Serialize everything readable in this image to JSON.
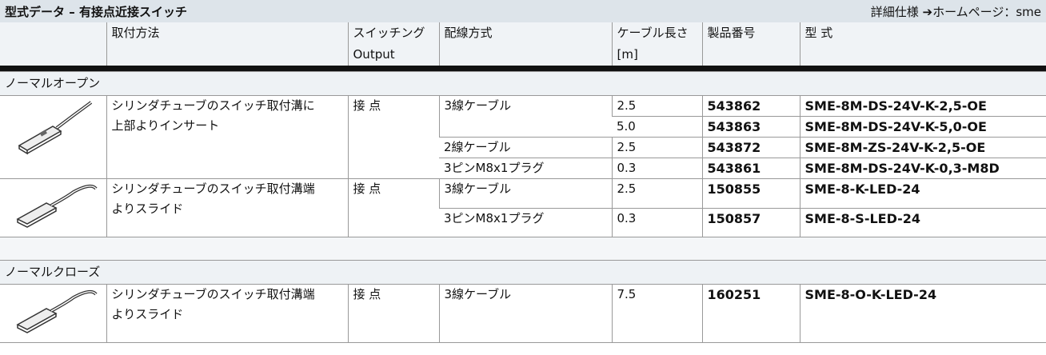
{
  "header": {
    "title": "型式データ – 有接点近接スイッチ",
    "link": "詳細仕様 ➔ホームページ：sme"
  },
  "columns": [
    [
      "取付方法"
    ],
    [
      "スイッチング",
      "Output"
    ],
    [
      "配線方式"
    ],
    [
      "ケーブル長さ",
      "[m]"
    ],
    [
      "製品番号"
    ],
    [
      "型 式"
    ]
  ],
  "sections": [
    {
      "title": "ノーマルオープン",
      "groups": [
        {
          "icon": "insert",
          "mounting": [
            "シリンダチューブのスイッチ取付溝に",
            "上部よりインサート"
          ],
          "switching": "接 点",
          "wirings": [
            {
              "wiring": "3線ケーブル",
              "rows": [
                {
                  "length": "2.5",
                  "part": "543862",
                  "model": "SME-8M-DS-24V-K-2,5-OE"
                },
                {
                  "length": "5.0",
                  "part": "543863",
                  "model": "SME-8M-DS-24V-K-5,0-OE"
                }
              ]
            },
            {
              "wiring": "2線ケーブル",
              "rows": [
                {
                  "length": "2.5",
                  "part": "543872",
                  "model": "SME-8M-ZS-24V-K-2,5-OE"
                }
              ]
            },
            {
              "wiring": "3ピンM8x1プラグ",
              "rows": [
                {
                  "length": "0.3",
                  "part": "543861",
                  "model": "SME-8M-DS-24V-K-0,3-M8D"
                }
              ]
            }
          ]
        },
        {
          "icon": "slide",
          "mounting": [
            "シリンダチューブのスイッチ取付溝端",
            "よりスライド"
          ],
          "switching": "接 点",
          "wirings": [
            {
              "wiring": "3線ケーブル",
              "rows": [
                {
                  "length": "2.5",
                  "part": "150855",
                  "model": "SME-8-K-LED-24"
                }
              ]
            },
            {
              "wiring": "3ピンM8x1プラグ",
              "rows": [
                {
                  "length": "0.3",
                  "part": "150857",
                  "model": "SME-8-S-LED-24"
                }
              ]
            }
          ]
        }
      ]
    },
    {
      "title": "ノーマルクローズ",
      "groups": [
        {
          "icon": "slide",
          "mounting": [
            "シリンダチューブのスイッチ取付溝端",
            "よりスライド"
          ],
          "switching": "接 点",
          "wirings": [
            {
              "wiring": "3線ケーブル",
              "rows": [
                {
                  "length": "7.5",
                  "part": "160251",
                  "model": "SME-8-O-K-LED-24"
                }
              ]
            }
          ]
        }
      ]
    }
  ]
}
